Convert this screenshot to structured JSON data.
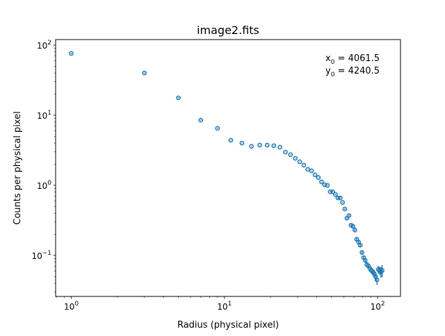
{
  "chart_data": {
    "type": "scatter",
    "title": "image2.fits",
    "xlabel": "Radius (physical pixel)",
    "ylabel": "Counts per physical pixel",
    "xscale": "log",
    "yscale": "log",
    "xlim": [
      0.79,
      141
    ],
    "ylim": [
      0.026,
      120
    ],
    "grid": false,
    "marker": "open-circle",
    "color": "#1f77b4",
    "x_ticks": [
      {
        "value": 1,
        "base": "10",
        "exp": "0"
      },
      {
        "value": 10,
        "base": "10",
        "exp": "1"
      },
      {
        "value": 100,
        "base": "10",
        "exp": "2"
      }
    ],
    "y_ticks": [
      {
        "value": 0.1,
        "base": "10",
        "exp": "−1"
      },
      {
        "value": 1,
        "base": "10",
        "exp": "0"
      },
      {
        "value": 10,
        "base": "10",
        "exp": "1"
      },
      {
        "value": 100,
        "base": "10",
        "exp": "2"
      }
    ],
    "annotations": [
      {
        "var": "x",
        "sub": "0",
        "text": " = 4061.5"
      },
      {
        "var": "y",
        "sub": "0",
        "text": " = 4240.5"
      }
    ],
    "x": [
      1,
      3,
      5,
      7,
      9,
      11,
      13,
      15,
      17,
      19,
      21,
      23,
      25,
      27,
      29,
      31,
      33,
      35,
      37,
      39,
      41,
      43,
      45,
      47,
      49,
      51,
      53,
      55,
      57,
      59,
      61,
      63,
      65,
      67,
      69,
      71,
      73,
      75,
      77,
      79,
      81,
      83,
      85,
      87,
      89,
      91,
      93,
      95,
      97,
      99,
      101,
      103,
      105,
      107
    ],
    "y": [
      76,
      40,
      17.7,
      8.5,
      6.5,
      4.4,
      4.0,
      3.6,
      3.75,
      3.75,
      3.67,
      3.5,
      2.98,
      2.73,
      2.43,
      2.17,
      1.94,
      1.69,
      1.61,
      1.41,
      1.29,
      1.12,
      1.02,
      1.0,
      0.81,
      0.81,
      0.74,
      0.66,
      0.66,
      0.57,
      0.46,
      0.34,
      0.37,
      0.27,
      0.26,
      0.23,
      0.17,
      0.155,
      0.14,
      0.11,
      0.093,
      0.085,
      0.074,
      0.071,
      0.065,
      0.061,
      0.058,
      0.055,
      0.05,
      0.045,
      0.063,
      0.061,
      0.058,
      0.061
    ],
    "yerr": [
      1.2,
      0.6,
      0.3,
      0.15,
      0.1,
      0.06,
      0.05,
      0.04,
      0.04,
      0.04,
      0.035,
      0.03,
      0.03,
      0.025,
      0.025,
      0.02,
      0.02,
      0.02,
      0.02,
      0.015,
      0.015,
      0.015,
      0.015,
      0.015,
      0.012,
      0.012,
      0.012,
      0.012,
      0.01,
      0.01,
      0.01,
      0.01,
      0.01,
      0.008,
      0.008,
      0.008,
      0.007,
      0.007,
      0.007,
      0.006,
      0.006,
      0.006,
      0.006,
      0.006,
      0.006,
      0.006,
      0.007,
      0.007,
      0.007,
      0.007,
      0.008,
      0.008,
      0.01,
      0.012
    ]
  }
}
